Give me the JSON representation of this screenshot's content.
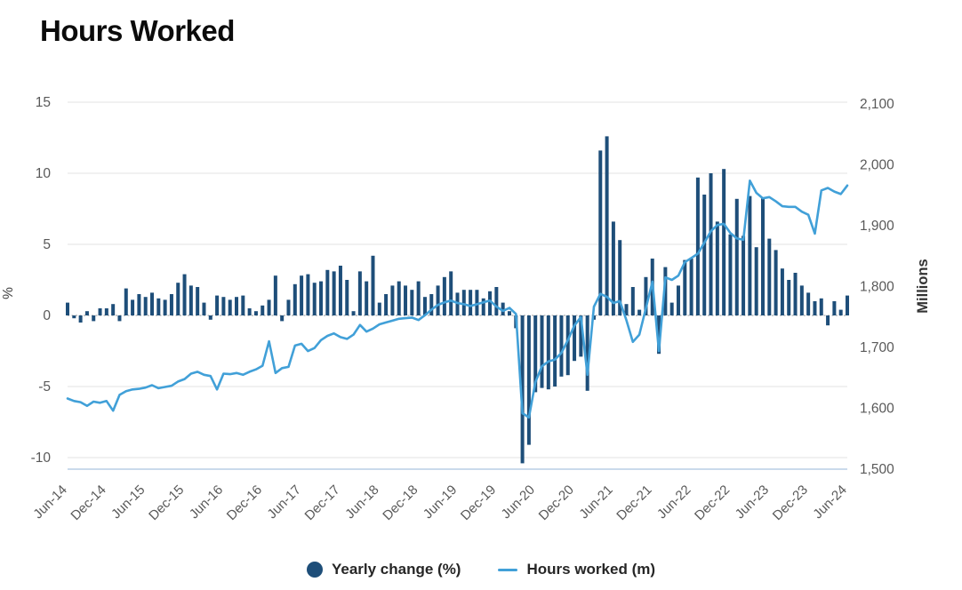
{
  "title": "Hours Worked",
  "legend": {
    "items": [
      {
        "label": "Yearly change (%)",
        "swatch": "circle",
        "color": "#1E4E79"
      },
      {
        "label": "Hours worked (m)",
        "swatch": "line",
        "color": "#41A0D8"
      }
    ]
  },
  "chart_data": {
    "type": "combo",
    "frequency": "monthly",
    "x_start": "Jun-14",
    "x_end": "Jun-24",
    "x_tick_labels": [
      "Jun-14",
      "Dec-14",
      "Jun-15",
      "Dec-15",
      "Jun-16",
      "Dec-16",
      "Jun-17",
      "Dec-17",
      "Jun-18",
      "Dec-18",
      "Jun-19",
      "Dec-19",
      "Jun-20",
      "Dec-20",
      "Jun-21",
      "Dec-21",
      "Jun-22",
      "Dec-22",
      "Jun-23",
      "Dec-23",
      "Jun-24"
    ],
    "left_axis": {
      "title": "%",
      "tick_labels": [
        "15",
        "10",
        "5",
        "0",
        "-5",
        "-10"
      ],
      "tick_values": [
        15,
        10,
        5,
        0,
        -5,
        -10
      ],
      "min": -11.15,
      "max": 15,
      "zero_line_style": "dashed",
      "grid": true
    },
    "right_axis": {
      "title": "Millions",
      "tick_labels": [
        "2,100",
        "2,000",
        "1,900",
        "1,800",
        "1,700",
        "1,600",
        "1,500"
      ],
      "tick_values": [
        2100,
        2000,
        1900,
        1800,
        1700,
        1600,
        1500
      ],
      "min": 1500,
      "max": 2100
    },
    "series": [
      {
        "name": "Yearly change (%)",
        "type": "bar",
        "axis": "left",
        "color": "#1E4E79",
        "values": [
          0.9,
          -0.2,
          -0.5,
          0.3,
          -0.4,
          0.5,
          0.5,
          0.8,
          -0.4,
          1.9,
          1.1,
          1.5,
          1.3,
          1.6,
          1.2,
          1.1,
          1.5,
          2.3,
          2.9,
          2.1,
          2.0,
          0.9,
          -0.3,
          1.4,
          1.3,
          1.1,
          1.3,
          1.4,
          0.5,
          0.3,
          0.7,
          1.1,
          2.8,
          -0.4,
          1.1,
          2.2,
          2.8,
          2.9,
          2.3,
          2.4,
          3.2,
          3.1,
          3.5,
          2.5,
          0.3,
          3.1,
          2.4,
          4.2,
          0.9,
          1.5,
          2.1,
          2.4,
          2.1,
          1.8,
          2.4,
          1.3,
          1.5,
          2.1,
          2.7,
          3.1,
          1.6,
          1.8,
          1.8,
          1.8,
          1.2,
          1.7,
          2.0,
          0.9,
          0.3,
          -0.9,
          -10.4,
          -9.1,
          -5.4,
          -5.1,
          -5.2,
          -5.0,
          -4.3,
          -4.2,
          -3.2,
          -2.9,
          -5.3,
          -0.3,
          11.6,
          12.6,
          6.6,
          5.3,
          0.8,
          2.0,
          0.4,
          2.7,
          4.0,
          -2.7,
          3.4,
          0.9,
          2.1,
          3.9,
          4.0,
          9.7,
          8.5,
          10.0,
          6.6,
          10.3,
          5.7,
          8.2,
          5.6,
          8.4,
          4.8,
          8.3,
          5.4,
          4.6,
          3.3,
          2.5,
          3.0,
          2.1,
          1.6,
          1.0,
          1.2,
          -0.7,
          1.0,
          0.4,
          1.4
        ]
      },
      {
        "name": "Hours worked (m)",
        "type": "line",
        "axis": "right",
        "color": "#41A0D8",
        "values": [
          1616,
          1612,
          1610,
          1604,
          1611,
          1609,
          1612,
          1596,
          1622,
          1628,
          1631,
          1632,
          1634,
          1638,
          1633,
          1635,
          1637,
          1644,
          1648,
          1657,
          1660,
          1655,
          1653,
          1631,
          1657,
          1656,
          1658,
          1655,
          1660,
          1664,
          1670,
          1710,
          1658,
          1666,
          1668,
          1703,
          1706,
          1694,
          1699,
          1712,
          1719,
          1723,
          1717,
          1714,
          1721,
          1737,
          1726,
          1731,
          1738,
          1741,
          1744,
          1747,
          1748,
          1749,
          1745,
          1753,
          1762,
          1770,
          1774,
          1777,
          1773,
          1771,
          1768,
          1771,
          1774,
          1777,
          1767,
          1760,
          1765,
          1755,
          1592,
          1585,
          1643,
          1669,
          1677,
          1680,
          1691,
          1712,
          1736,
          1750,
          1655,
          1767,
          1788,
          1783,
          1773,
          1776,
          1745,
          1709,
          1721,
          1764,
          1808,
          1694,
          1815,
          1811,
          1818,
          1840,
          1847,
          1854,
          1872,
          1891,
          1901,
          1903,
          1888,
          1879,
          1877,
          1974,
          1954,
          1945,
          1947,
          1940,
          1932,
          1931,
          1931,
          1923,
          1918,
          1887,
          1958,
          1962,
          1956,
          1952,
          1966
        ]
      }
    ]
  }
}
